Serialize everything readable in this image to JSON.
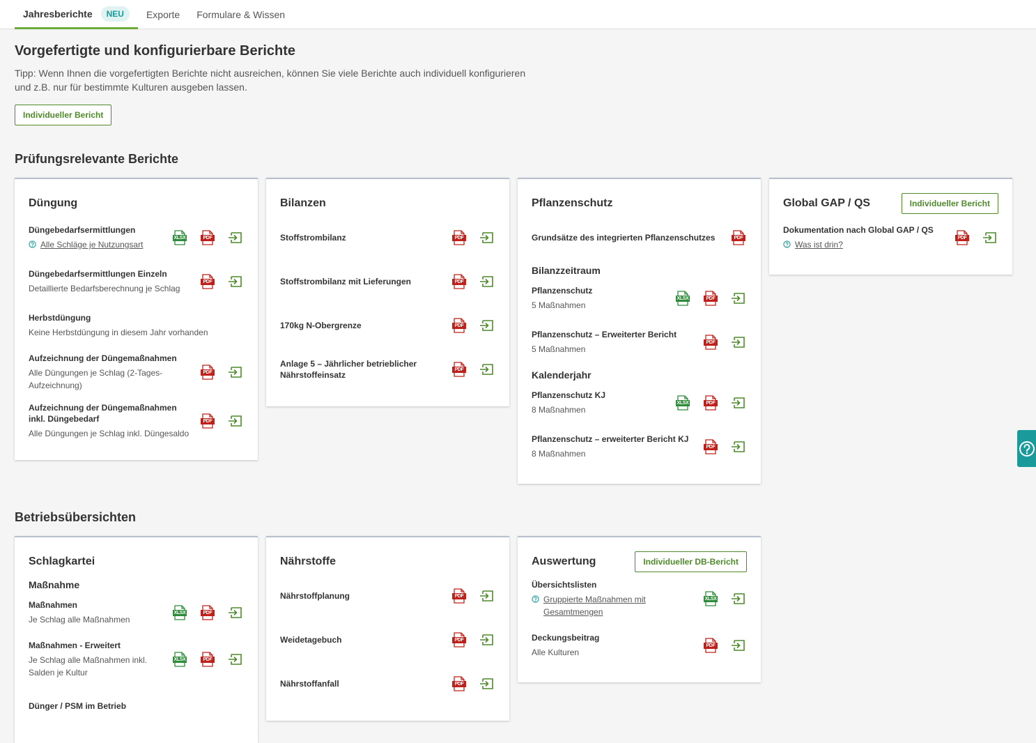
{
  "tabs": [
    {
      "label": "Jahresberichte",
      "badge": "NEU",
      "active": true
    },
    {
      "label": "Exporte",
      "active": false
    },
    {
      "label": "Formulare & Wissen",
      "active": false
    }
  ],
  "intro": {
    "title": "Vorgefertigte und konfigurierbare Berichte",
    "tip": "Tipp: Wenn Ihnen die vorgefertigten Berichte nicht ausreichen, können Sie viele Berichte auch individuell konfigurieren und z.B. nur für bestimmte Kulturen ausgeben lassen.",
    "button": "Individueller Bericht"
  },
  "sections": [
    {
      "title": "Prüfungsrelevante Berichte",
      "cards": [
        {
          "title": "Düngung",
          "items": [
            {
              "name": "Düngebedarfsermittlungen",
              "link": "Alle Schläge je Nutzungsart",
              "formats": [
                "XLSX",
                "PDF"
              ],
              "export": true
            },
            {
              "name": "Düngebedarfsermittlungen Einzeln",
              "sub": "Detaillierte Bedarfsberechnung je Schlag",
              "formats": [
                "PDF"
              ],
              "export": true
            },
            {
              "name": "Herbstdüngung",
              "sub": "Keine Herbstdüngung in diesem Jahr vorhanden",
              "formats": [],
              "export": false
            },
            {
              "name": "Aufzeichnung der Düngemaßnahmen",
              "sub": "Alle Düngungen je Schlag (2-Tages-Aufzeichnung)",
              "formats": [
                "PDF"
              ],
              "export": true
            },
            {
              "name": "Aufzeichnung der Düngemaßnahmen inkl. Düngebedarf",
              "sub": "Alle Düngungen je Schlag inkl. Düngesaldo",
              "formats": [
                "PDF"
              ],
              "export": true
            }
          ]
        },
        {
          "title": "Bilanzen",
          "items": [
            {
              "name": "Stoffstrombilanz",
              "formats": [
                "PDF"
              ],
              "export": true
            },
            {
              "name": "Stoffstrombilanz mit Lieferungen",
              "formats": [
                "PDF"
              ],
              "export": true
            },
            {
              "name": "170kg N-Obergrenze",
              "formats": [
                "PDF"
              ],
              "export": true
            },
            {
              "name": "Anlage 5 – Jährlicher betrieblicher Nährstoffeinsatz",
              "formats": [
                "PDF"
              ],
              "export": true
            }
          ]
        },
        {
          "title": "Pflanzenschutz",
          "items": [
            {
              "name": "Grundsätze des integrierten Pflanzenschutzes",
              "formats": [
                "PDF"
              ],
              "export": false
            },
            {
              "heading": "Bilanzzeitraum"
            },
            {
              "name": "Pflanzenschutz",
              "sub": "5 Maßnahmen",
              "formats": [
                "XLSX",
                "PDF"
              ],
              "export": true
            },
            {
              "name": "Pflanzenschutz – Erweiterter Bericht",
              "sub": "5 Maßnahmen",
              "formats": [
                "PDF"
              ],
              "export": true
            },
            {
              "heading": "Kalenderjahr"
            },
            {
              "name": "Pflanzenschutz KJ",
              "sub": "8 Maßnahmen",
              "formats": [
                "XLSX",
                "PDF"
              ],
              "export": true
            },
            {
              "name": "Pflanzenschutz – erweiterter Bericht KJ",
              "sub": "8 Maßnahmen",
              "formats": [
                "PDF"
              ],
              "export": true
            }
          ]
        },
        {
          "title": "Global GAP / QS",
          "button": "Individueller Bericht",
          "items": [
            {
              "name": "Dokumentation nach Global GAP / QS",
              "link": "Was ist drin?",
              "formats": [
                "PDF"
              ],
              "export": true
            }
          ]
        }
      ]
    },
    {
      "title": "Betriebsübersichten",
      "cards": [
        {
          "title": "Schlagkartei",
          "items": [
            {
              "heading": "Maßnahme"
            },
            {
              "name": "Maßnahmen",
              "sub": "Je Schlag alle Maßnahmen",
              "formats": [
                "XLSX",
                "PDF"
              ],
              "export": true
            },
            {
              "name": "Maßnahmen - Erweitert",
              "sub": "Je Schlag alle Maßnahmen inkl. Salden je Kultur",
              "formats": [
                "XLSX",
                "PDF"
              ],
              "export": true
            },
            {
              "name": "Dünger / PSM im Betrieb",
              "formats": [],
              "export": false
            }
          ]
        },
        {
          "title": "Nährstoffe",
          "items": [
            {
              "name": "Nährstoffplanung",
              "formats": [
                "PDF"
              ],
              "export": true
            },
            {
              "name": "Weidetagebuch",
              "formats": [
                "PDF"
              ],
              "export": true
            },
            {
              "name": "Nährstoffanfall",
              "formats": [
                "PDF"
              ],
              "export": true
            }
          ]
        },
        {
          "title": "Auswertung",
          "button": "Individueller DB-Bericht",
          "items": [
            {
              "name": "Übersichtslisten",
              "link": "Gruppierte Maßnahmen mit Gesamtmengen",
              "formats": [
                "XLSX"
              ],
              "export": true
            },
            {
              "name": "Deckungsbeitrag",
              "sub": "Alle Kulturen",
              "formats": [
                "PDF"
              ],
              "export": true
            }
          ]
        }
      ]
    }
  ]
}
